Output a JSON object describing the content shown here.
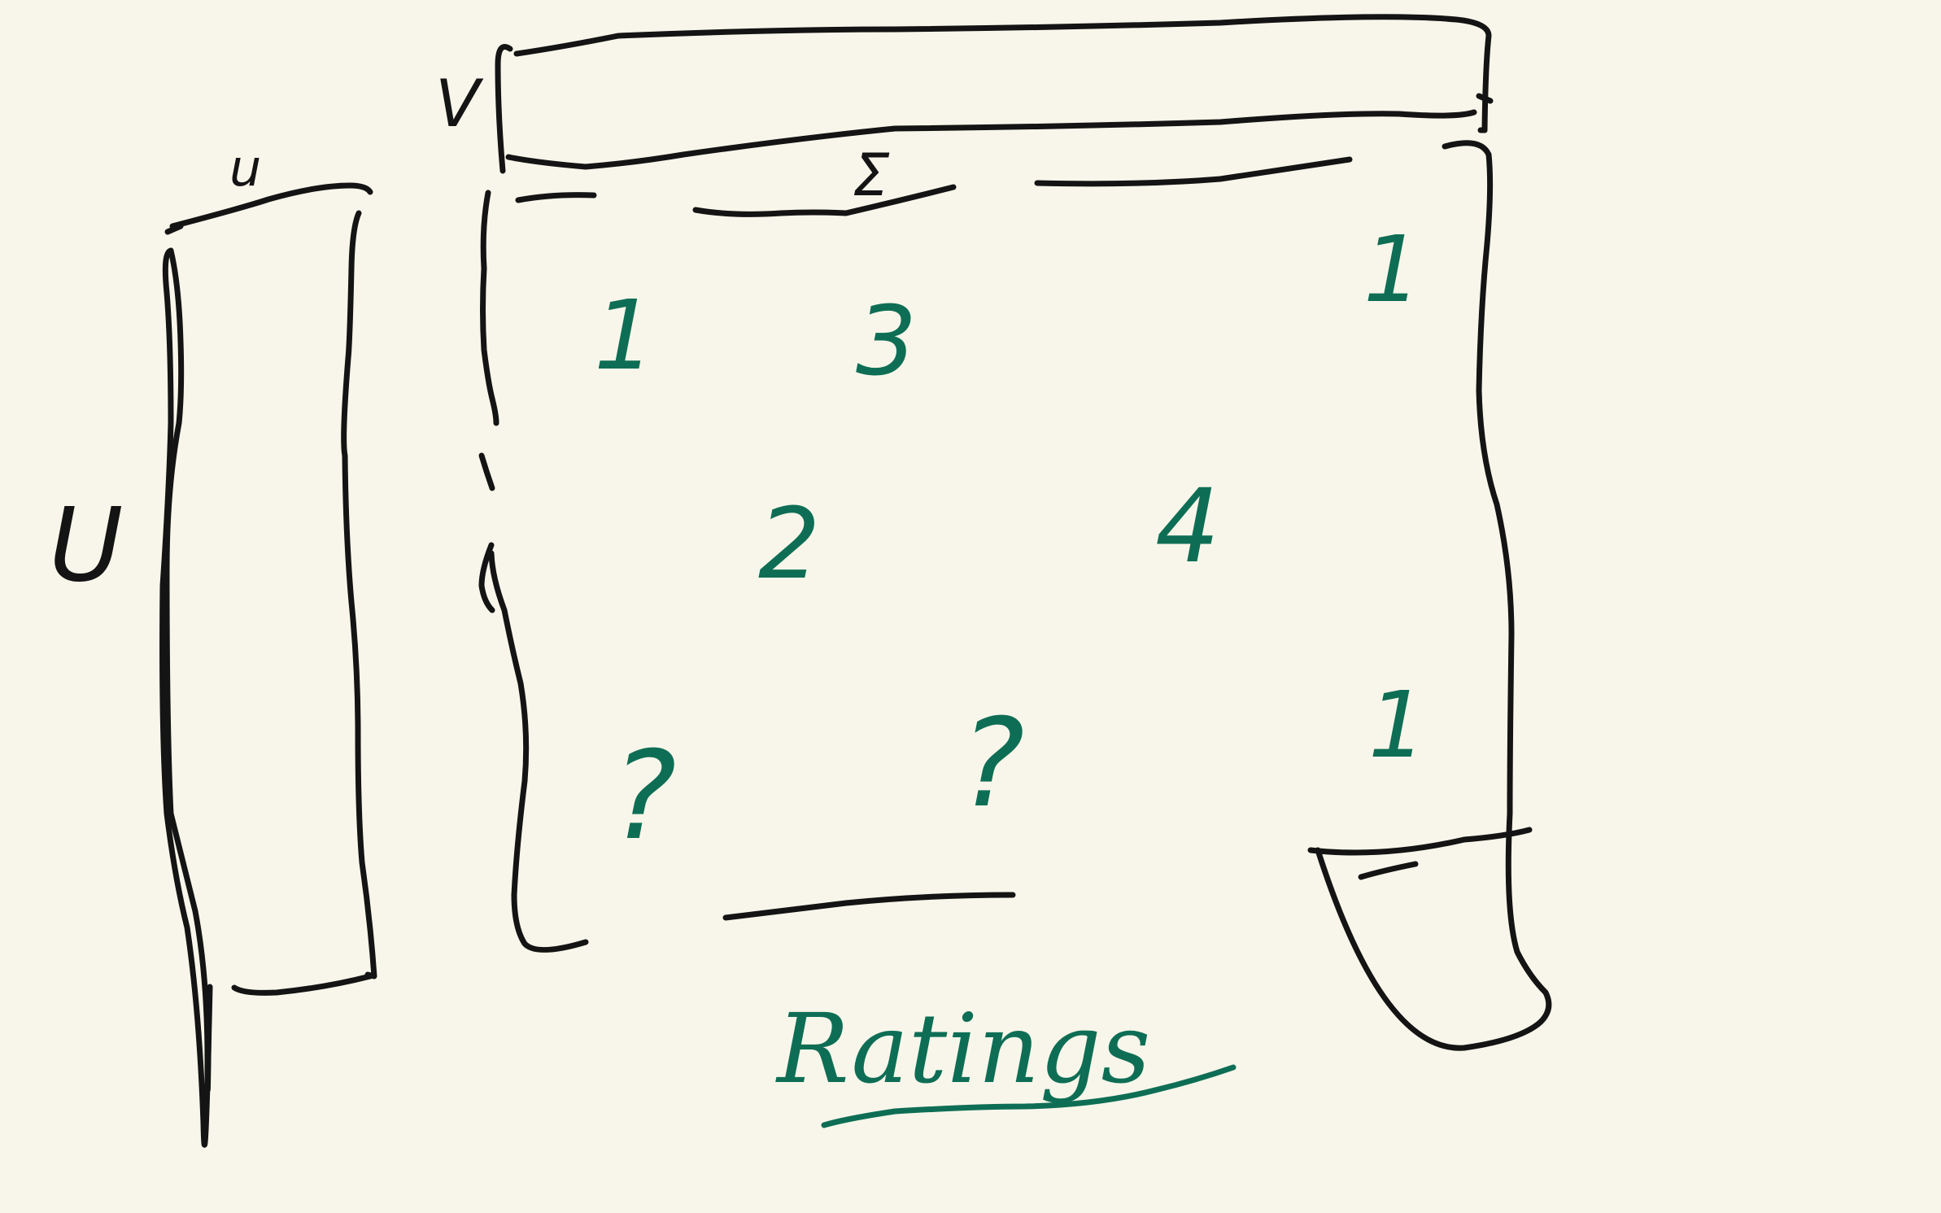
{
  "colors": {
    "background": "#f8f6ea",
    "ink": "#141414",
    "accent": "#0e6e55"
  },
  "labels": {
    "u_tall": "U",
    "u_small": "u",
    "v_wide": "V",
    "sigma": "Σ",
    "matrix_title": "Ratings"
  },
  "matrix_entries": [
    {
      "id": "r1c1",
      "text": "1"
    },
    {
      "id": "r1c2",
      "text": "3"
    },
    {
      "id": "r1c4",
      "text": "1"
    },
    {
      "id": "r2c2",
      "text": "2"
    },
    {
      "id": "r2c3",
      "text": "4"
    },
    {
      "id": "r3c1",
      "text": "?"
    },
    {
      "id": "r3c2",
      "text": "?"
    },
    {
      "id": "r3c4",
      "text": "1"
    }
  ]
}
